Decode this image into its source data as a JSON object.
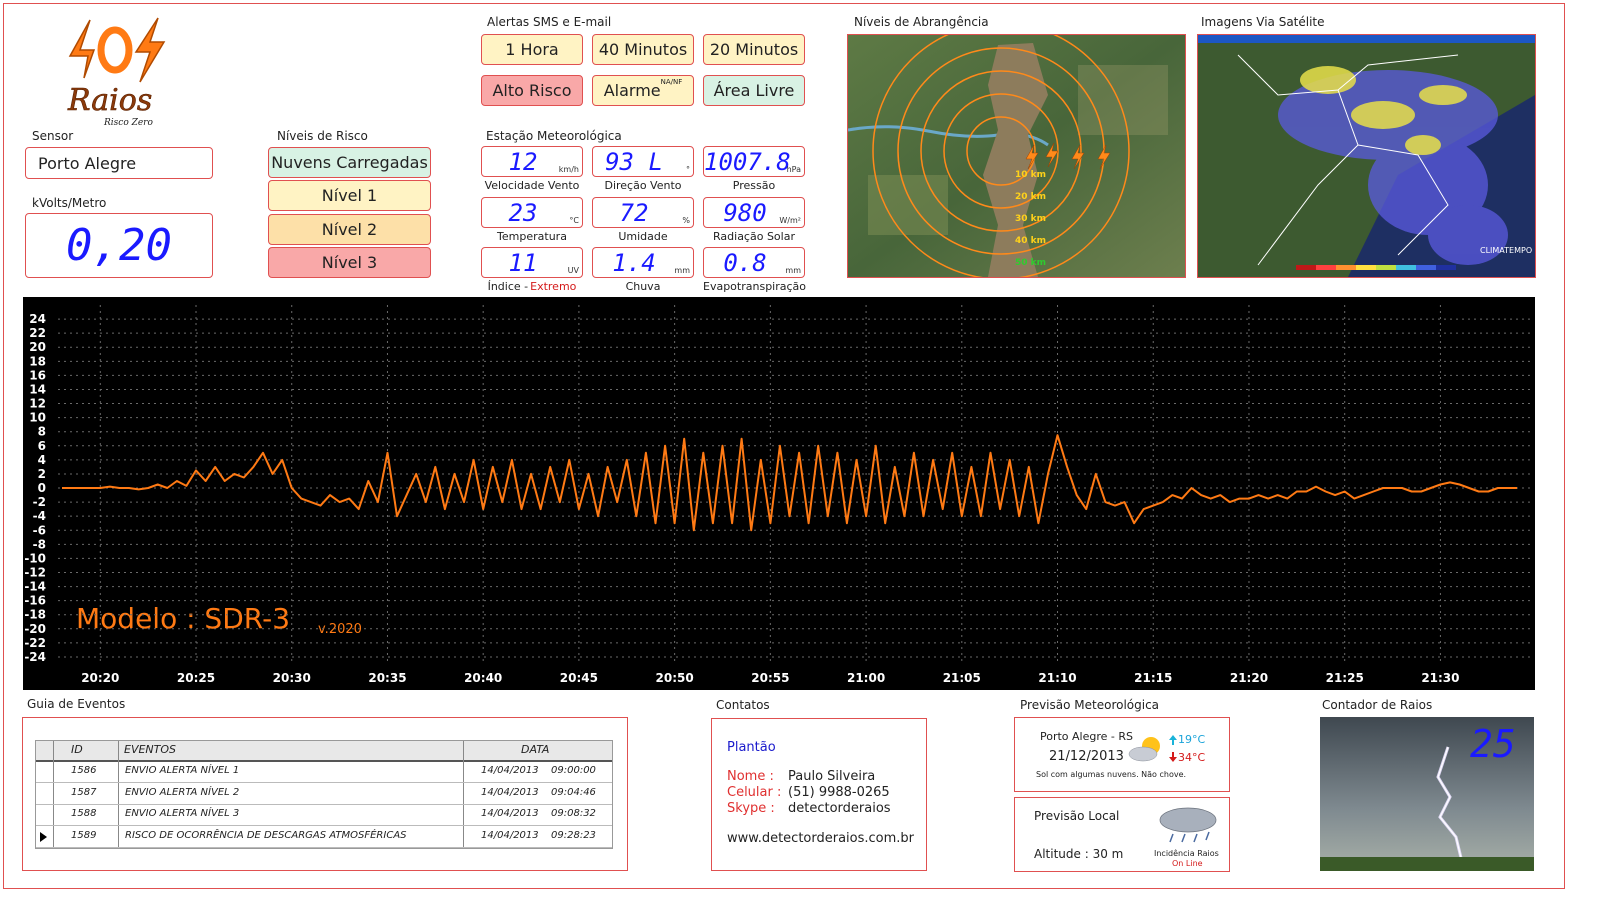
{
  "header": {
    "logo": {
      "name": "Raios",
      "tagline": "Risco Zero"
    }
  },
  "sensor": {
    "label": "Sensor",
    "value": "Porto Alegre",
    "field_label": "kVolts/Metro",
    "field_value": "0,20"
  },
  "risk_levels": {
    "title": "Níveis de Risco",
    "items": [
      "Nuvens Carregadas",
      "Nível 1",
      "Nível 2",
      "Nível 3"
    ]
  },
  "alerts": {
    "title": "Alertas SMS e E-mail",
    "buttons": [
      {
        "label": "1 Hora"
      },
      {
        "label": "40 Minutos"
      },
      {
        "label": "20 Minutos"
      },
      {
        "label": "Alto Risco"
      },
      {
        "label": "Alarme",
        "sup": "NA/NF"
      },
      {
        "label": "Área Livre"
      }
    ]
  },
  "station": {
    "title": "Estação Meteorológica",
    "readings": [
      {
        "value": "12",
        "unit": "km/h",
        "label": "Velocidade Vento"
      },
      {
        "value": "93 L",
        "unit": "°",
        "label": "Direção Vento"
      },
      {
        "value": "1007.8",
        "unit": "hPa",
        "label": "Pressão"
      },
      {
        "value": "23",
        "unit": "°C",
        "label": "Temperatura"
      },
      {
        "value": "72",
        "unit": "%",
        "label": "Umidade"
      },
      {
        "value": "980",
        "unit": "W/m²",
        "label": "Radiação Solar"
      },
      {
        "value": "11",
        "unit": "UV",
        "label": "Índice -",
        "highlight": "Extremo"
      },
      {
        "value": "1.4",
        "unit": "mm",
        "label": "Chuva"
      },
      {
        "value": "0.8",
        "unit": "mm",
        "label": "Evapotranspiração"
      }
    ]
  },
  "coverage": {
    "title": "Níveis de Abrangência",
    "rings": [
      "10 km",
      "20 km",
      "30 km",
      "40 km",
      "50 km"
    ]
  },
  "satellite": {
    "title": "Imagens Via Satélite",
    "brand": "CLIMATEMPO"
  },
  "chart_data": {
    "type": "line",
    "annotation": "Modelo : SDR-3",
    "annotation_version": "v.2020",
    "color": "#ff7a14",
    "grid": true,
    "ylim": [
      -25,
      26
    ],
    "yticks": [
      -24,
      -22,
      -20,
      -18,
      -16,
      -14,
      -12,
      -10,
      -8,
      -6,
      -4,
      -2,
      0,
      2,
      4,
      6,
      8,
      10,
      12,
      14,
      16,
      18,
      20,
      22,
      24
    ],
    "categories": [
      null,
      null,
      null,
      null,
      "20:20",
      null,
      null,
      null,
      null,
      null,
      null,
      null,
      null,
      null,
      "20:25",
      null,
      null,
      null,
      null,
      null,
      null,
      null,
      null,
      null,
      "20:30",
      null,
      null,
      null,
      null,
      null,
      null,
      null,
      null,
      null,
      "20:35",
      null,
      null,
      null,
      null,
      null,
      null,
      null,
      null,
      null,
      "20:40",
      null,
      null,
      null,
      null,
      null,
      null,
      null,
      null,
      null,
      "20:45",
      null,
      null,
      null,
      null,
      null,
      null,
      null,
      null,
      null,
      "20:50",
      null,
      null,
      null,
      null,
      null,
      null,
      null,
      null,
      null,
      "20:55",
      null,
      null,
      null,
      null,
      null,
      null,
      null,
      null,
      null,
      "21:00",
      null,
      null,
      null,
      null,
      null,
      null,
      null,
      null,
      null,
      "21:05",
      null,
      null,
      null,
      null,
      null,
      null,
      null,
      null,
      null,
      "21:10",
      null,
      null,
      null,
      null,
      null,
      null,
      null,
      null,
      null,
      "21:15",
      null,
      null,
      null,
      null,
      null,
      null,
      null,
      null,
      null,
      "21:20",
      null,
      null,
      null,
      null,
      null,
      null,
      null,
      null,
      null,
      "21:25",
      null,
      null,
      null,
      null,
      null,
      null,
      null,
      null,
      null,
      "21:30",
      null,
      null,
      null,
      null,
      null,
      null,
      null,
      null
    ],
    "values": [
      0,
      0,
      0,
      0,
      0,
      0.2,
      0,
      0,
      -0.2,
      0,
      0.5,
      0,
      1,
      0.3,
      2.5,
      1,
      3,
      1,
      2,
      1.5,
      3,
      5,
      2,
      4,
      0,
      -1.5,
      -2,
      -2.5,
      -1,
      -2,
      -1.5,
      -3,
      1,
      -2,
      5,
      -4,
      -1,
      2,
      -2,
      3,
      -3,
      2,
      -2,
      4,
      -3,
      3,
      -2,
      4,
      -3,
      2,
      -3,
      3,
      -2,
      4,
      -3,
      2,
      -4,
      3,
      -2,
      4,
      -4,
      5,
      -5,
      6,
      -5,
      7,
      -6,
      5,
      -5,
      6,
      -5,
      7,
      -6,
      4,
      -5,
      6,
      -4,
      5,
      -5,
      6,
      -4,
      5,
      -5,
      4,
      -4,
      6,
      -5,
      3,
      -4,
      5,
      -4,
      4,
      -3,
      5,
      -4,
      3,
      -4,
      5,
      -3,
      4,
      -4,
      3,
      -5,
      2,
      7.5,
      3,
      -1,
      -3,
      2,
      -2,
      -2.5,
      -2,
      -5,
      -3,
      -2.5,
      -2,
      -1,
      -1.5,
      0,
      -1,
      -1.5,
      -1,
      -2,
      -1.5,
      -1.5,
      -1,
      -1.5,
      -1,
      -1.5,
      -0.5,
      -0.5,
      0.2,
      -0.5,
      -1,
      -0.5,
      -1.5,
      -1,
      -0.5,
      0,
      0,
      0,
      -0.5,
      -0.5,
      0,
      0.5,
      0.8,
      0.5,
      0,
      -0.5,
      -0.5,
      0,
      0,
      0
    ]
  },
  "events": {
    "title": "Guia de Eventos",
    "columns": [
      "ID",
      "EVENTOS",
      "DATA"
    ],
    "rows": [
      [
        "1586",
        "ENVIO ALERTA NÍVEL 1",
        "14/04/2013",
        "09:00:00"
      ],
      [
        "1587",
        "ENVIO ALERTA NÍVEL 2",
        "14/04/2013",
        "09:04:46"
      ],
      [
        "1588",
        "ENVIO ALERTA NÍVEL 3",
        "14/04/2013",
        "09:08:32"
      ],
      [
        "1589",
        "RISCO DE OCORRÊNCIA DE DESCARGAS ATMOSFÉRICAS",
        "14/04/2013",
        "09:28:23"
      ]
    ]
  },
  "contacts": {
    "title": "Contatos",
    "duty": "Plantão",
    "rows": [
      {
        "label": "Nome :",
        "value": "Paulo Silveira"
      },
      {
        "label": "Celular :",
        "value": "(51) 9988-0265"
      },
      {
        "label": "Skype :",
        "value": "detectorderaios"
      }
    ],
    "website": "www.detectorderaios.com.br"
  },
  "forecast": {
    "title": "Previsão Meteorológica",
    "city": "Porto Alegre - RS",
    "date": "21/12/2013",
    "high": "19°C",
    "low": "34°C",
    "summary": "Sol com algumas nuvens. Não chove."
  },
  "local": {
    "title": "Previsão Local",
    "altitude": "Altitude : 30 m",
    "status_label": "Incidência Raios",
    "status": "On Line"
  },
  "counter": {
    "title": "Contador de Raios",
    "value": "25"
  }
}
